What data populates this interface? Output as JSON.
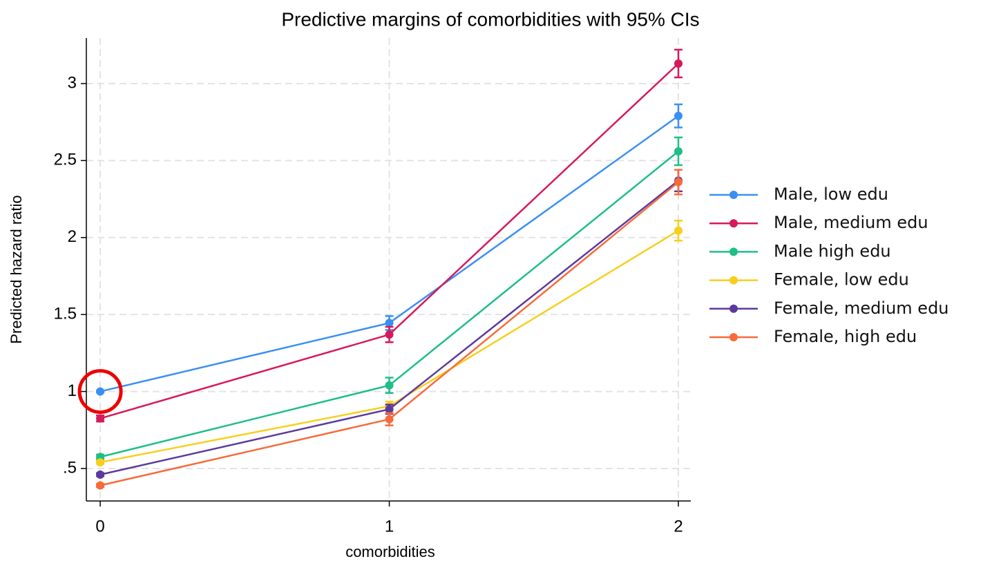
{
  "chart_data": {
    "type": "line",
    "title": "Predictive margins of comorbidities with 95% CIs",
    "x_label": "comorbidities",
    "y_label": "Predicted hazard ratio",
    "x": [
      0,
      1,
      2
    ],
    "xlim": [
      -0.048,
      2.043
    ],
    "ylim": [
      0.289,
      3.296
    ],
    "xticks": [
      0,
      1,
      2
    ],
    "yticks": [
      {
        "value": 0.5,
        "label": ".5"
      },
      1,
      1.5,
      2,
      2.5,
      3
    ],
    "grid": true,
    "legend": "right",
    "series": [
      {
        "name": "Male, low edu",
        "color": "#3a8ff5",
        "values": [
          1.0,
          1.445,
          2.79
        ],
        "errors": [
          0.005,
          0.045,
          0.075
        ]
      },
      {
        "name": "Male, medium edu",
        "color": "#d6195a",
        "values": [
          0.825,
          1.37,
          3.13
        ],
        "errors": [
          0.02,
          0.05,
          0.09
        ]
      },
      {
        "name": "Male high edu",
        "color": "#1dbf85",
        "values": [
          0.575,
          1.04,
          2.56
        ],
        "errors": [
          0.015,
          0.05,
          0.09
        ]
      },
      {
        "name": "Female, low edu",
        "color": "#f7cf1c",
        "values": [
          0.54,
          0.905,
          2.045
        ],
        "errors": [
          0.01,
          0.03,
          0.065
        ]
      },
      {
        "name": "Female, medium edu",
        "color": "#5b3a9e",
        "values": [
          0.46,
          0.885,
          2.37
        ],
        "errors": [
          0.01,
          0.03,
          0.07
        ]
      },
      {
        "name": "Female, high edu",
        "color": "#f86a3a",
        "values": [
          0.39,
          0.82,
          2.36
        ],
        "errors": [
          0.01,
          0.04,
          0.08
        ]
      }
    ]
  }
}
